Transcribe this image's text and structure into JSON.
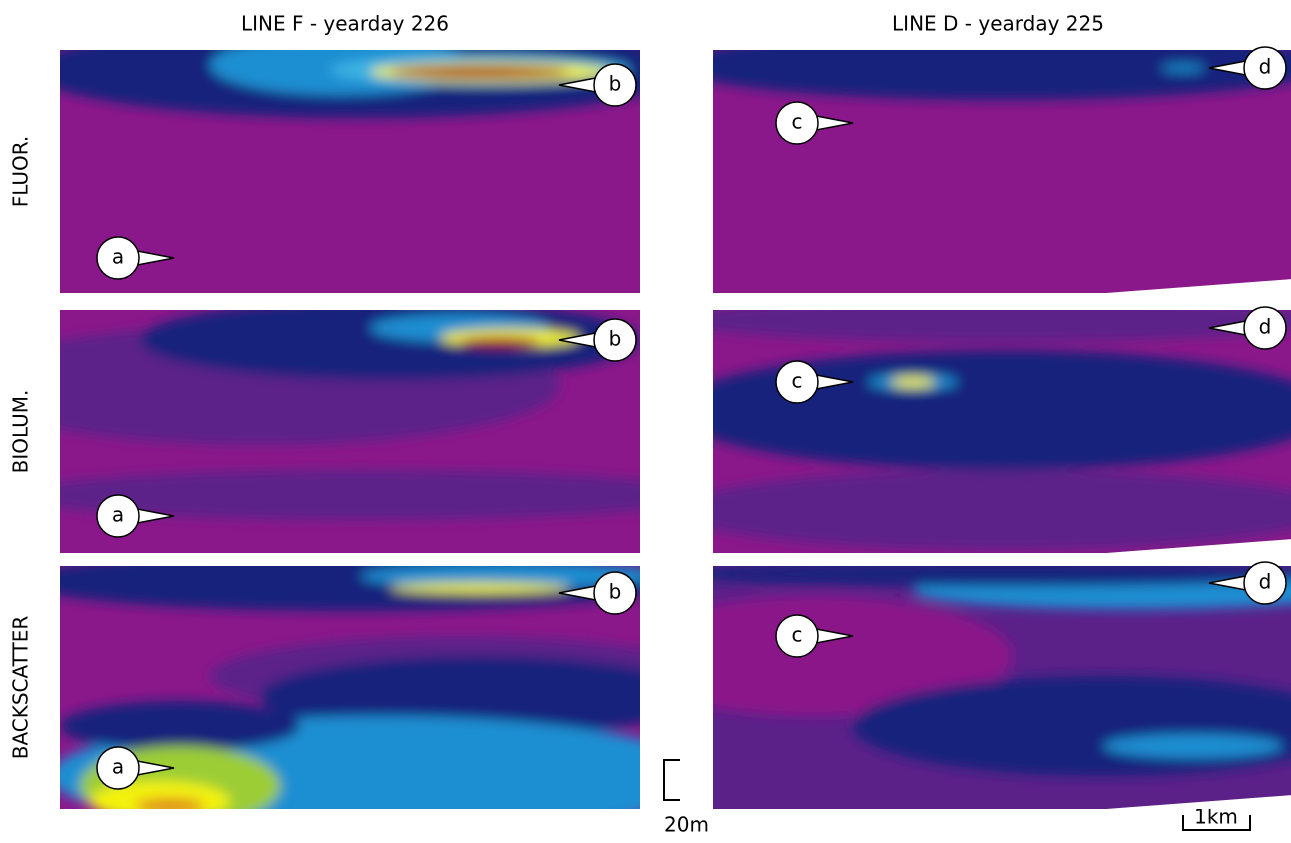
{
  "columns": [
    {
      "title": "LINE F - yearday 226"
    },
    {
      "title": "LINE D - yearday 225"
    }
  ],
  "rows": [
    {
      "label": "FLUOR."
    },
    {
      "label": "BIOLUM."
    },
    {
      "label": "BACKSCATTER"
    }
  ],
  "panels": [
    {
      "callouts": [
        "b",
        "a"
      ]
    },
    {
      "callouts": [
        "d",
        "c"
      ]
    },
    {
      "callouts": [
        "b",
        "a"
      ]
    },
    {
      "callouts": [
        "d",
        "c"
      ]
    },
    {
      "callouts": [
        "b",
        "a"
      ]
    },
    {
      "callouts": [
        "d",
        "c"
      ]
    }
  ],
  "scale": {
    "depth": "20m",
    "distance": "1km"
  }
}
